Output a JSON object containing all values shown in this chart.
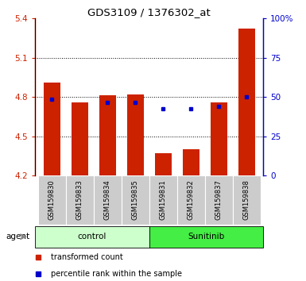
{
  "title": "GDS3109 / 1376302_at",
  "samples": [
    "GSM159830",
    "GSM159833",
    "GSM159834",
    "GSM159835",
    "GSM159831",
    "GSM159832",
    "GSM159837",
    "GSM159838"
  ],
  "groups": [
    "control",
    "control",
    "control",
    "control",
    "Sunitinib",
    "Sunitinib",
    "Sunitinib",
    "Sunitinib"
  ],
  "red_values": [
    4.91,
    4.76,
    4.81,
    4.82,
    4.37,
    4.4,
    4.76,
    5.32
  ],
  "blue_values": [
    4.78,
    null,
    4.76,
    4.76,
    4.71,
    4.71,
    4.73,
    4.8
  ],
  "ymin": 4.2,
  "ymax": 5.4,
  "yticks": [
    4.2,
    4.5,
    4.8,
    5.1,
    5.4
  ],
  "ytick_labels": [
    "4.2",
    "4.5",
    "4.8",
    "5.1",
    "5.4"
  ],
  "right_yticks": [
    0,
    25,
    50,
    75,
    100
  ],
  "right_ytick_labels": [
    "0",
    "25",
    "50",
    "75",
    "100%"
  ],
  "grid_values": [
    4.5,
    4.8,
    5.1
  ],
  "bar_color": "#cc2200",
  "dot_color": "#0000cc",
  "control_bg": "#ccffcc",
  "sunitinib_bg": "#44ee44",
  "tick_label_bg": "#cccccc",
  "legend_red_label": "transformed count",
  "legend_blue_label": "percentile rank within the sample",
  "agent_label": "agent",
  "group_labels": [
    "control",
    "Sunitinib"
  ]
}
